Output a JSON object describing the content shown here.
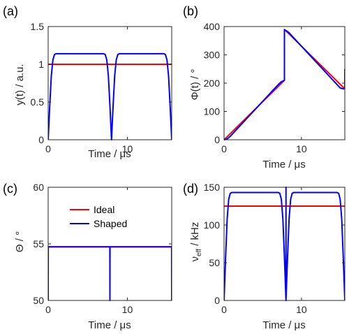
{
  "chart_data": [
    {
      "panel": "(a)",
      "type": "line",
      "xlabel": "Time / μs",
      "ylabel": "y(t) / a.u.",
      "xlim": [
        0,
        15.6
      ],
      "ylim": [
        0,
        1.5
      ],
      "xticks": [
        0,
        10
      ],
      "yticks": [
        0,
        0.5,
        1,
        1.5
      ],
      "ytick_labels": [
        "0",
        "0.5",
        "1",
        "1.5"
      ],
      "series": [
        {
          "key": "ideal",
          "color": "#ff0000",
          "x": [
            0,
            15.6
          ],
          "y": [
            1,
            1
          ]
        },
        {
          "key": "shaped",
          "color": "#0000ff",
          "x": [
            0,
            0.2,
            0.4,
            0.6,
            0.8,
            1.0,
            7.0,
            7.2,
            7.4,
            7.6,
            7.8,
            8.0,
            8.2,
            8.4,
            8.6,
            8.8,
            9.0,
            14.6,
            14.8,
            15.0,
            15.2,
            15.4,
            15.6
          ],
          "y": [
            0,
            0.45,
            0.85,
            1.06,
            1.13,
            1.14,
            1.14,
            1.13,
            1.06,
            0.85,
            0.45,
            0,
            0.45,
            0.85,
            1.06,
            1.13,
            1.14,
            1.14,
            1.13,
            1.06,
            0.85,
            0.45,
            0
          ]
        }
      ]
    },
    {
      "panel": "(b)",
      "type": "line",
      "xlabel": "Time / μs",
      "ylabel": "Φ(t) / °",
      "xlim": [
        0,
        15.6
      ],
      "ylim": [
        0,
        400
      ],
      "xticks": [
        0,
        10
      ],
      "yticks": [
        0,
        100,
        200,
        300,
        400
      ],
      "ytick_labels": [
        "0",
        "100",
        "200",
        "300",
        "400"
      ],
      "series": [
        {
          "key": "ideal",
          "color": "#ff0000",
          "x": [
            0,
            7.8,
            7.8,
            15.6
          ],
          "y": [
            0,
            210,
            390,
            180
          ]
        },
        {
          "key": "shaped",
          "color": "#0000ff",
          "x": [
            0,
            0.4,
            0.8,
            1.2,
            7.0,
            7.4,
            7.8,
            7.8,
            8.0,
            8.4,
            8.8,
            14.6,
            15.0,
            15.4,
            15.6,
            15.6
          ],
          "y": [
            0,
            3,
            12,
            24,
            195,
            205,
            210,
            388,
            386,
            378,
            366,
            195,
            183,
            180,
            182,
            250
          ]
        }
      ]
    },
    {
      "panel": "(c)",
      "type": "line",
      "xlabel": "Time / μs",
      "ylabel": "Θ / °",
      "xlim": [
        0,
        15.6
      ],
      "ylim": [
        50,
        60
      ],
      "xticks": [
        0,
        10
      ],
      "yticks": [
        50,
        55,
        60
      ],
      "ytick_labels": [
        "50",
        "55",
        "60"
      ],
      "legend": {
        "position": "upper-center",
        "entries": [
          {
            "key": "ideal",
            "label": "Ideal",
            "color": "#ff0000"
          },
          {
            "key": "shaped",
            "label": "Shaped",
            "color": "#0000ff"
          }
        ]
      },
      "series": [
        {
          "key": "ideal",
          "color": "#ff0000",
          "x": [
            0,
            15.6
          ],
          "y": [
            54.74,
            54.74
          ]
        },
        {
          "key": "shaped",
          "color": "#0000ff",
          "x": [
            0,
            0.01,
            7.79,
            7.8,
            7.81,
            15.59,
            15.6
          ],
          "y": [
            50,
            54.74,
            54.74,
            50,
            54.74,
            54.74,
            50
          ]
        }
      ]
    },
    {
      "panel": "(d)",
      "type": "line",
      "xlabel": "Time / μs",
      "ylabel_main": "ν",
      "ylabel_sub": "eff",
      "ylabel_tail": " / kHz",
      "xlim": [
        0,
        15.6
      ],
      "ylim": [
        0,
        150
      ],
      "xticks": [
        0,
        10
      ],
      "yticks": [
        0,
        50,
        100,
        150
      ],
      "ytick_labels": [
        "0",
        "50",
        "100",
        "150"
      ],
      "series": [
        {
          "key": "ideal",
          "color": "#ff0000",
          "x": [
            0,
            15.6
          ],
          "y": [
            125,
            125
          ]
        },
        {
          "key": "shaped",
          "color": "#0000ff",
          "x": [
            0,
            0.2,
            0.4,
            0.6,
            0.8,
            1.0,
            7.0,
            7.2,
            7.4,
            7.6,
            7.8,
            8.0,
            8.0,
            8.0,
            8.2,
            8.4,
            8.6,
            8.8,
            9.0,
            14.6,
            14.8,
            15.0,
            15.2,
            15.4,
            15.6
          ],
          "y": [
            0,
            57,
            108,
            134,
            142,
            143,
            143,
            142,
            134,
            108,
            57,
            0,
            150,
            0,
            57,
            108,
            134,
            142,
            143,
            143,
            142,
            134,
            108,
            57,
            0
          ]
        }
      ]
    }
  ],
  "colors": {
    "ideal": "#ff0000",
    "shaped": "#0000ff",
    "axis": "#262626"
  }
}
